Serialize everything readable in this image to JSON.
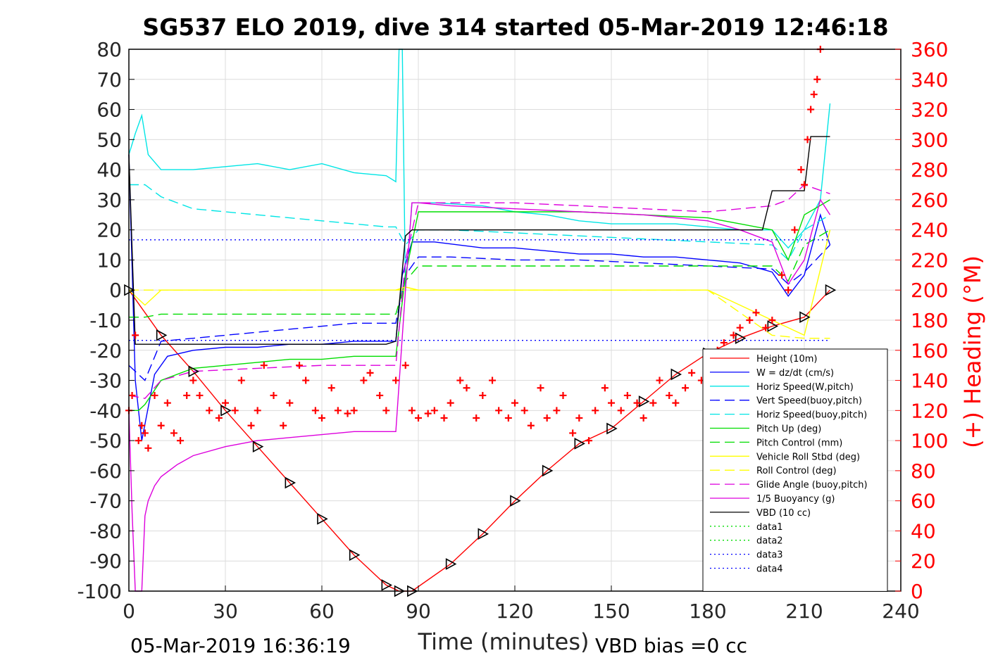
{
  "chart_data": {
    "type": "line",
    "title": "SG537 ELO 2019, dive 314 started 05-Mar-2019 12:46:18",
    "xlabel": "Time (minutes)",
    "ylabel": "",
    "y2label": "(+) Heading (°M)",
    "xlim": [
      0,
      240
    ],
    "ylim": [
      -100,
      80
    ],
    "y2lim": [
      0,
      360
    ],
    "x_ticks": [
      "0",
      "30",
      "60",
      "90",
      "120",
      "150",
      "180",
      "210",
      "240"
    ],
    "y_ticks": [
      "80",
      "70",
      "60",
      "50",
      "40",
      "30",
      "20",
      "10",
      "0",
      "-10",
      "-20",
      "-30",
      "-40",
      "-50",
      "-60",
      "-70",
      "-80",
      "-90",
      "-100"
    ],
    "y2_ticks": [
      "360",
      "340",
      "320",
      "300",
      "280",
      "260",
      "240",
      "220",
      "200",
      "180",
      "160",
      "140",
      "120",
      "100",
      "80",
      "60",
      "40",
      "20",
      "0"
    ],
    "grid": true,
    "legend_position": "lower-right",
    "footer_left": "05-Mar-2019 16:36:19",
    "footer_right": "VBD bias =0 cc",
    "series": [
      {
        "name": "Height (10m)",
        "color": "#ff0000",
        "style": "solid",
        "x": [
          0,
          10,
          20,
          30,
          40,
          50,
          60,
          70,
          80,
          84,
          88,
          100,
          110,
          120,
          130,
          140,
          150,
          160,
          170,
          180,
          190,
          200,
          210,
          218
        ],
        "y": [
          0,
          -15,
          -27,
          -40,
          -52,
          -64,
          -76,
          -88,
          -98,
          -100,
          -100,
          -91,
          -81,
          -70,
          -60,
          -51,
          -46,
          -37,
          -28,
          -21,
          -16,
          -12,
          -9,
          0
        ]
      },
      {
        "name": "W = dz/dt (cm/s)",
        "color": "#0000ff",
        "style": "solid",
        "x": [
          0,
          2,
          4,
          8,
          12,
          20,
          30,
          40,
          50,
          60,
          70,
          80,
          83,
          85,
          88,
          95,
          110,
          120,
          130,
          140,
          150,
          160,
          170,
          180,
          190,
          200,
          205,
          210,
          215,
          218
        ],
        "y": [
          45,
          -30,
          -50,
          -28,
          -22,
          -20,
          -19,
          -19,
          -18,
          -18,
          -17,
          -17,
          -17,
          5,
          16,
          16,
          14,
          14,
          13,
          12,
          12,
          11,
          11,
          10,
          9,
          6,
          -2,
          5,
          25,
          15
        ]
      },
      {
        "name": "Horiz Speed(W,pitch)",
        "color": "#00e5e5",
        "style": "solid",
        "x": [
          0,
          2,
          4,
          6,
          10,
          20,
          30,
          40,
          50,
          60,
          70,
          80,
          83,
          84,
          85,
          86,
          88,
          95,
          110,
          120,
          130,
          140,
          150,
          160,
          170,
          180,
          190,
          200,
          205,
          210,
          215,
          218
        ],
        "y": [
          45,
          52,
          58,
          45,
          40,
          40,
          41,
          42,
          40,
          42,
          39,
          38,
          36,
          80,
          80,
          0,
          29,
          29,
          28,
          26,
          25,
          23,
          22,
          22,
          22,
          21,
          20,
          20,
          14,
          20,
          30,
          62
        ]
      },
      {
        "name": "Vert Speed(buoy,pitch)",
        "color": "#0000ff",
        "style": "dashed",
        "x": [
          0,
          5,
          10,
          20,
          30,
          40,
          50,
          60,
          70,
          80,
          83,
          86,
          90,
          100,
          120,
          140,
          160,
          180,
          200,
          205,
          210,
          218
        ],
        "y": [
          -25,
          -30,
          -17,
          -16,
          -15,
          -14,
          -13,
          -12,
          -11,
          -11,
          -11,
          5,
          11,
          11,
          10,
          10,
          9,
          8,
          7,
          2,
          6,
          15
        ]
      },
      {
        "name": "Horiz Speed(buoy,pitch)",
        "color": "#00e5e5",
        "style": "dashed",
        "x": [
          0,
          5,
          10,
          20,
          30,
          40,
          50,
          60,
          70,
          80,
          83,
          86,
          90,
          100,
          120,
          140,
          160,
          180,
          200,
          205,
          210,
          218
        ],
        "y": [
          35,
          35,
          31,
          27,
          26,
          25,
          24,
          23,
          22,
          21,
          21,
          15,
          20,
          20,
          19,
          18,
          17,
          16,
          15,
          10,
          20,
          25
        ]
      },
      {
        "name": "Pitch Up (deg)",
        "color": "#00dd00",
        "style": "solid",
        "x": [
          0,
          3,
          5,
          10,
          20,
          30,
          40,
          50,
          60,
          70,
          80,
          83,
          86,
          90,
          100,
          120,
          140,
          160,
          180,
          190,
          200,
          205,
          210,
          218
        ],
        "y": [
          -40,
          -40,
          -38,
          -30,
          -26,
          -25,
          -24,
          -23,
          -23,
          -22,
          -22,
          -22,
          5,
          26,
          26,
          26,
          26,
          25,
          24,
          22,
          20,
          10,
          25,
          30
        ]
      },
      {
        "name": "Pitch Control (mm)",
        "color": "#00dd00",
        "style": "dashed",
        "x": [
          0,
          5,
          10,
          20,
          40,
          60,
          80,
          83,
          86,
          90,
          120,
          140,
          160,
          180,
          200,
          205,
          210,
          218
        ],
        "y": [
          -9,
          -9,
          -8,
          -8,
          -8,
          -8,
          -8,
          -8,
          3,
          8,
          8,
          8,
          8,
          8,
          8,
          3,
          15,
          20
        ]
      },
      {
        "name": "Vehicle Roll Stbd (deg)",
        "color": "#ffff00",
        "style": "solid",
        "x": [
          0,
          5,
          10,
          20,
          30,
          40,
          50,
          60,
          70,
          80,
          83,
          86,
          90,
          100,
          120,
          140,
          160,
          180,
          190,
          200,
          210,
          218
        ],
        "y": [
          0,
          -5,
          0,
          0,
          0,
          0,
          0,
          0,
          0,
          0,
          0,
          1,
          0,
          0,
          0,
          0,
          0,
          0,
          -5,
          -10,
          -15,
          20
        ]
      },
      {
        "name": "Roll Control (deg)",
        "color": "#ffff00",
        "style": "dashed",
        "x": [
          0,
          20,
          40,
          60,
          80,
          86,
          100,
          120,
          140,
          160,
          180,
          200,
          210,
          218
        ],
        "y": [
          0,
          0,
          0,
          0,
          0,
          0,
          0,
          0,
          0,
          0,
          0,
          -15,
          -16,
          -16
        ]
      },
      {
        "name": "Glide Angle (buoy,pitch)",
        "color": "#dd00dd",
        "style": "dashed",
        "x": [
          0,
          5,
          10,
          20,
          40,
          60,
          80,
          83,
          86,
          90,
          100,
          120,
          140,
          160,
          180,
          190,
          200,
          205,
          210,
          218
        ],
        "y": [
          -35,
          -36,
          -30,
          -27,
          -26,
          -25,
          -25,
          -25,
          10,
          29,
          29,
          29,
          28,
          27,
          26,
          27,
          28,
          30,
          35,
          32
        ]
      },
      {
        "name": "1/5 Buoyancy (g)",
        "color": "#dd00dd",
        "style": "solid",
        "x": [
          0,
          1,
          2,
          3,
          4,
          5,
          6,
          8,
          10,
          15,
          20,
          30,
          40,
          50,
          60,
          70,
          80,
          83,
          86,
          88,
          90,
          100,
          120,
          140,
          160,
          180,
          190,
          200,
          205,
          210,
          215,
          218
        ],
        "y": [
          -40,
          -74,
          -100,
          -100,
          -100,
          -75,
          -70,
          -65,
          -62,
          -58,
          -55,
          -52,
          -50,
          -49,
          -48,
          -47,
          -47,
          -47,
          0,
          29,
          29,
          28,
          27,
          26,
          25,
          23,
          20,
          16,
          2,
          10,
          30,
          25
        ]
      },
      {
        "name": "VBD (10 cc)",
        "color": "#000000",
        "style": "solid",
        "x": [
          0,
          2,
          5,
          10,
          20,
          40,
          60,
          80,
          83,
          86,
          88,
          100,
          120,
          140,
          160,
          180,
          197,
          200,
          210,
          212,
          218
        ],
        "y": [
          45,
          -18,
          -18,
          -18,
          -18,
          -18,
          -18,
          -18,
          -17,
          18,
          20,
          20,
          20,
          20,
          20,
          20,
          20,
          33,
          33,
          51,
          51
        ]
      },
      {
        "name": "data1",
        "color": "#00dd00",
        "style": "dotted",
        "x": [],
        "y": []
      },
      {
        "name": "data2",
        "color": "#00dd00",
        "style": "dotted",
        "x": [],
        "y": []
      },
      {
        "name": "data3",
        "color": "#0000ff",
        "style": "dotted",
        "x": [
          0,
          218
        ],
        "y": [
          16.7,
          16.7
        ]
      },
      {
        "name": "data4",
        "color": "#0000ff",
        "style": "dotted",
        "x": [
          0,
          218
        ],
        "y": [
          -16.7,
          -16.7
        ]
      }
    ],
    "heading": {
      "name": "(+) Heading (°M)",
      "color": "#ff0000",
      "marker": "+",
      "axis": "right",
      "x": [
        0,
        1,
        2,
        3,
        4,
        5,
        6,
        8,
        10,
        12,
        14,
        16,
        18,
        20,
        22,
        25,
        28,
        30,
        33,
        35,
        38,
        40,
        42,
        45,
        48,
        50,
        53,
        55,
        58,
        60,
        63,
        65,
        68,
        70,
        73,
        75,
        78,
        80,
        83,
        86,
        88,
        90,
        93,
        95,
        98,
        100,
        103,
        105,
        108,
        110,
        113,
        115,
        118,
        120,
        123,
        125,
        128,
        130,
        133,
        135,
        138,
        140,
        143,
        145,
        148,
        150,
        153,
        155,
        158,
        160,
        163,
        165,
        168,
        170,
        173,
        175,
        178,
        180,
        183,
        185,
        188,
        190,
        193,
        195,
        198,
        200,
        203,
        205,
        207,
        209,
        210,
        211,
        212,
        213,
        214,
        215
      ],
      "y": [
        120,
        130,
        170,
        100,
        110,
        105,
        95,
        130,
        110,
        125,
        105,
        100,
        130,
        140,
        130,
        120,
        115,
        125,
        120,
        140,
        110,
        120,
        150,
        130,
        110,
        125,
        150,
        140,
        120,
        115,
        135,
        120,
        118,
        120,
        140,
        145,
        130,
        120,
        140,
        150,
        120,
        115,
        118,
        120,
        115,
        125,
        140,
        135,
        115,
        130,
        140,
        120,
        115,
        125,
        120,
        110,
        135,
        115,
        120,
        130,
        105,
        115,
        100,
        120,
        135,
        125,
        120,
        130,
        125,
        115,
        125,
        140,
        130,
        125,
        135,
        145,
        140,
        150,
        160,
        165,
        170,
        175,
        180,
        185,
        175,
        180,
        210,
        200,
        240,
        280,
        270,
        300,
        320,
        330,
        340,
        360
      ]
    }
  }
}
